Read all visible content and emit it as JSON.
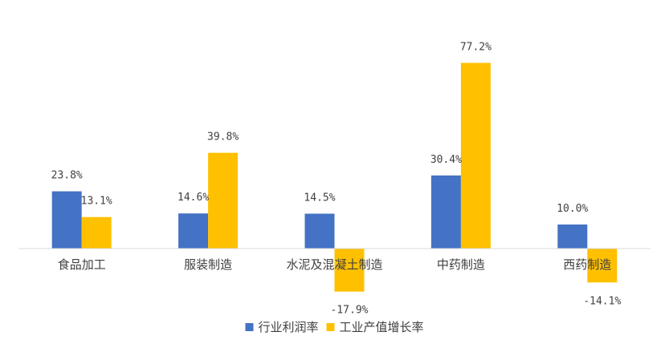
{
  "chart_data": {
    "type": "bar",
    "title": "",
    "xlabel": "",
    "ylabel": "",
    "ylim": [
      -25,
      85
    ],
    "grid": false,
    "legend_position": "bottom",
    "categories": [
      "食品加工",
      "服装制造",
      "水泥及混凝土制造",
      "中药制造",
      "西药制造"
    ],
    "series": [
      {
        "name": "行业利润率",
        "color": "#4472C4",
        "values": [
          23.8,
          14.6,
          14.5,
          30.4,
          10.0
        ],
        "labels": [
          "23.8%",
          "14.6%",
          "14.5%",
          "30.4%",
          "10.0%"
        ]
      },
      {
        "name": "工业产值增长率",
        "color": "#FFC000",
        "values": [
          13.1,
          39.8,
          -17.9,
          77.2,
          -14.1
        ],
        "labels": [
          "13.1%",
          "39.8%",
          "-17.9%",
          "77.2%",
          "-14.1%"
        ]
      }
    ]
  }
}
